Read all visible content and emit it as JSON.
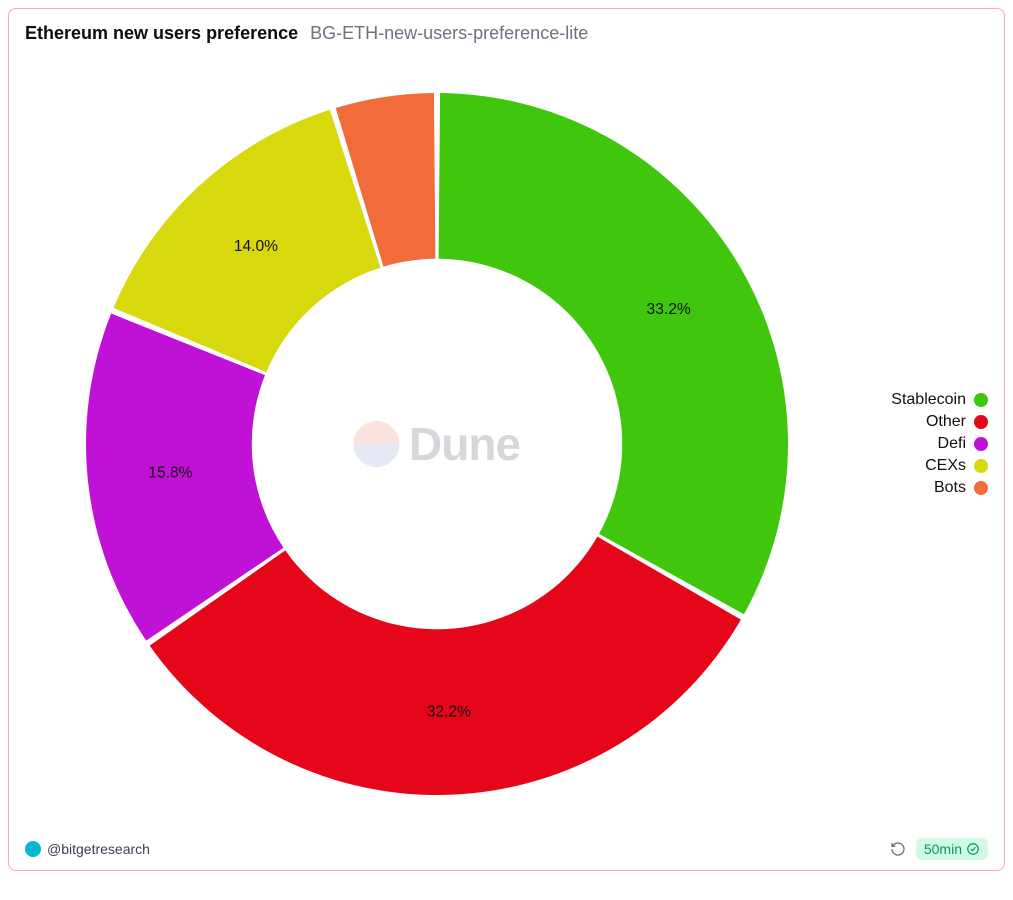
{
  "header": {
    "title": "Ethereum new users preference",
    "subtitle": "BG-ETH-new-users-preference-lite"
  },
  "chart": {
    "type": "donut",
    "background_color": "#ffffff",
    "outer_radius": 360,
    "inner_radius": 190,
    "gap_deg": 1.0,
    "label_fontsize": 16,
    "label_color": "#111111",
    "slices": [
      {
        "name": "Stablecoin",
        "value": 33.2,
        "label": "33.2%",
        "color": "#3fc60d"
      },
      {
        "name": "Other",
        "value": 32.2,
        "label": "32.2%",
        "color": "#e6061a"
      },
      {
        "name": "Defi",
        "value": 15.8,
        "label": "15.8%",
        "color": "#c012d6"
      },
      {
        "name": "CEXs",
        "value": 14.0,
        "label": "14.0%",
        "color": "#d7d90c"
      },
      {
        "name": "Bots",
        "value": 4.8,
        "label": "",
        "color": "#f26c3b"
      }
    ]
  },
  "legend": {
    "items": [
      {
        "label": "Stablecoin",
        "color": "#3fc60d"
      },
      {
        "label": "Other",
        "color": "#e6061a"
      },
      {
        "label": "Defi",
        "color": "#c012d6"
      },
      {
        "label": "CEXs",
        "color": "#d7d90c"
      },
      {
        "label": "Bots",
        "color": "#f26c3b"
      }
    ]
  },
  "watermark": {
    "text": "Dune",
    "logo_top_color": "#f6b0a0",
    "logo_bottom_color": "#b9bfdd"
  },
  "footer": {
    "author_handle": "@bitgetresearch",
    "author_badge_color": "#06b6d4",
    "age_text": "50min",
    "age_badge_bg": "#d1fae5",
    "age_badge_fg": "#059669"
  }
}
